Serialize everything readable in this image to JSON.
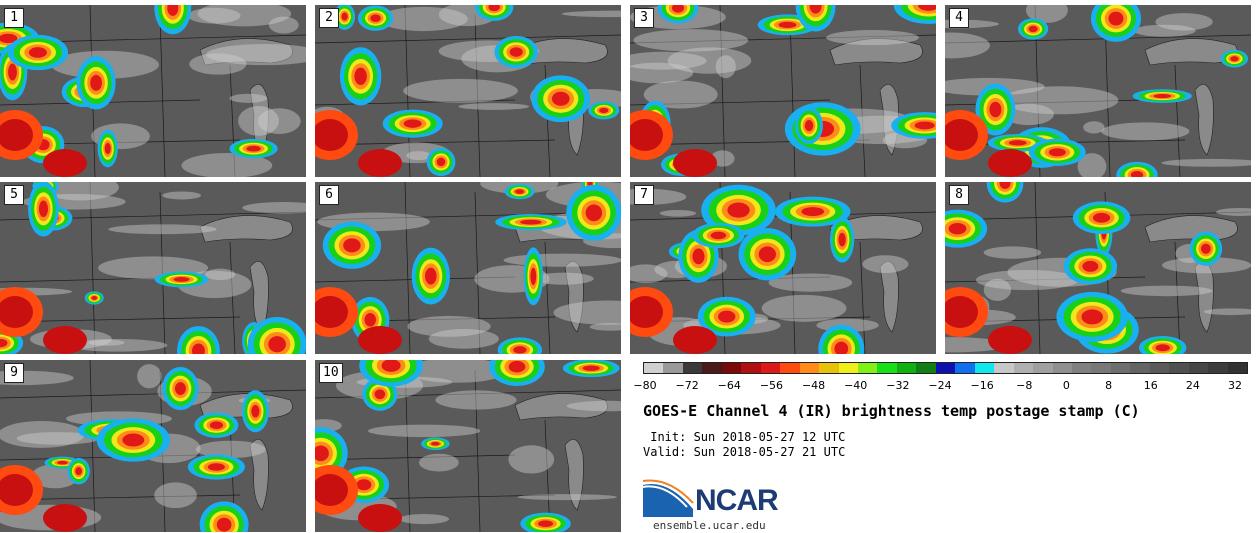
{
  "panels": [
    {
      "label": "1"
    },
    {
      "label": "2"
    },
    {
      "label": "3"
    },
    {
      "label": "4"
    },
    {
      "label": "5"
    },
    {
      "label": "6"
    },
    {
      "label": "7"
    },
    {
      "label": "8"
    },
    {
      "label": "9"
    },
    {
      "label": "10"
    }
  ],
  "colorbar": {
    "ticks": [
      "−80",
      "−72",
      "−64",
      "−56",
      "−48",
      "−40",
      "−32",
      "−24",
      "−16",
      "−8",
      "0",
      "8",
      "16",
      "24",
      "32"
    ],
    "colors": [
      "#d0d0d0",
      "#9a9a9a",
      "#3a3a3a",
      "#4a1a1a",
      "#7a0a0a",
      "#b01010",
      "#e01818",
      "#ff4a10",
      "#ff8c1a",
      "#e8c20a",
      "#f0f018",
      "#80f018",
      "#18e018",
      "#10b010",
      "#108010",
      "#1010b0",
      "#1070f0",
      "#10e8f0",
      "#c8c8c8",
      "#b0b0b0",
      "#a0a0a0",
      "#909090",
      "#808080",
      "#787878",
      "#6e6e6e",
      "#646464",
      "#5a5a5a",
      "#505050",
      "#464646",
      "#3c3c3c",
      "#323232"
    ]
  },
  "title": "GOES-E Channel 4 (IR) brightness temp postage stamp (C)",
  "init_line": " Init: Sun 2018-05-27 12 UTC",
  "valid_line": "Valid: Sun 2018-05-27 21 UTC",
  "logo": {
    "text": "NCAR",
    "url": "ensemble.ucar.edu"
  }
}
